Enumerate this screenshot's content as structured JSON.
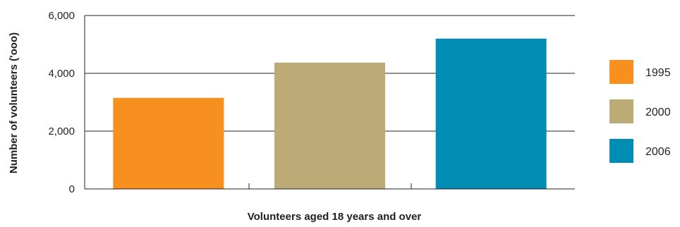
{
  "chart_data": {
    "type": "bar",
    "categories": [
      "1995",
      "2000",
      "2006"
    ],
    "values": [
      3150,
      4370,
      5200
    ],
    "colors": [
      "#f7901e",
      "#bcaa77",
      "#008db3"
    ],
    "xlabel": "Volunteers aged 18 years and over",
    "ylabel": "Number of volunteers ('ooo)",
    "ylim": [
      0,
      6000
    ],
    "yticks": [
      0,
      2000,
      4000,
      6000
    ],
    "ytick_labels": [
      "0",
      "2,000",
      "4,000",
      "6,000"
    ],
    "grid": true,
    "legend": {
      "placement": "right",
      "entries": [
        "1995",
        "2000",
        "2006"
      ]
    }
  }
}
